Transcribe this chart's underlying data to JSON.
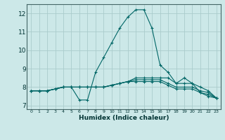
{
  "xlabel": "Humidex (Indice chaleur)",
  "ylabel": "",
  "bg_color": "#cce8e8",
  "grid_color": "#aacccc",
  "line_color": "#006666",
  "xlim": [
    -0.5,
    23.5
  ],
  "ylim": [
    6.8,
    12.5
  ],
  "xticks": [
    0,
    1,
    2,
    3,
    4,
    5,
    6,
    7,
    8,
    9,
    10,
    11,
    12,
    13,
    14,
    15,
    16,
    17,
    18,
    19,
    20,
    21,
    22,
    23
  ],
  "yticks": [
    7,
    8,
    9,
    10,
    11,
    12
  ],
  "lines": [
    {
      "x": [
        0,
        1,
        2,
        3,
        4,
        5,
        6,
        7,
        8,
        9,
        10,
        11,
        12,
        13,
        14,
        15,
        16,
        17,
        18,
        19,
        20,
        21,
        22,
        23
      ],
      "y": [
        7.8,
        7.8,
        7.8,
        7.9,
        8.0,
        8.0,
        7.3,
        7.3,
        8.8,
        9.6,
        10.4,
        11.2,
        11.8,
        12.2,
        12.2,
        11.2,
        9.2,
        8.8,
        8.2,
        8.5,
        8.2,
        7.7,
        7.5,
        7.4
      ]
    },
    {
      "x": [
        0,
        1,
        2,
        3,
        4,
        5,
        6,
        7,
        8,
        9,
        10,
        11,
        12,
        13,
        14,
        15,
        16,
        17,
        18,
        19,
        20,
        21,
        22,
        23
      ],
      "y": [
        7.8,
        7.8,
        7.8,
        7.9,
        8.0,
        8.0,
        8.0,
        8.0,
        8.0,
        8.0,
        8.1,
        8.2,
        8.3,
        8.3,
        8.3,
        8.3,
        8.3,
        8.1,
        7.9,
        7.9,
        7.9,
        7.7,
        7.6,
        7.4
      ]
    },
    {
      "x": [
        0,
        1,
        2,
        3,
        4,
        5,
        6,
        7,
        8,
        9,
        10,
        11,
        12,
        13,
        14,
        15,
        16,
        17,
        18,
        19,
        20,
        21,
        22,
        23
      ],
      "y": [
        7.8,
        7.8,
        7.8,
        7.9,
        8.0,
        8.0,
        8.0,
        8.0,
        8.0,
        8.0,
        8.1,
        8.2,
        8.3,
        8.4,
        8.4,
        8.4,
        8.4,
        8.2,
        8.0,
        8.0,
        8.0,
        7.8,
        7.7,
        7.4
      ]
    },
    {
      "x": [
        0,
        1,
        2,
        3,
        4,
        5,
        6,
        7,
        8,
        9,
        10,
        11,
        12,
        13,
        14,
        15,
        16,
        17,
        18,
        19,
        20,
        21,
        22,
        23
      ],
      "y": [
        7.8,
        7.8,
        7.8,
        7.9,
        8.0,
        8.0,
        8.0,
        8.0,
        8.0,
        8.0,
        8.1,
        8.2,
        8.3,
        8.5,
        8.5,
        8.5,
        8.5,
        8.5,
        8.2,
        8.2,
        8.2,
        8.0,
        7.8,
        7.4
      ]
    }
  ]
}
